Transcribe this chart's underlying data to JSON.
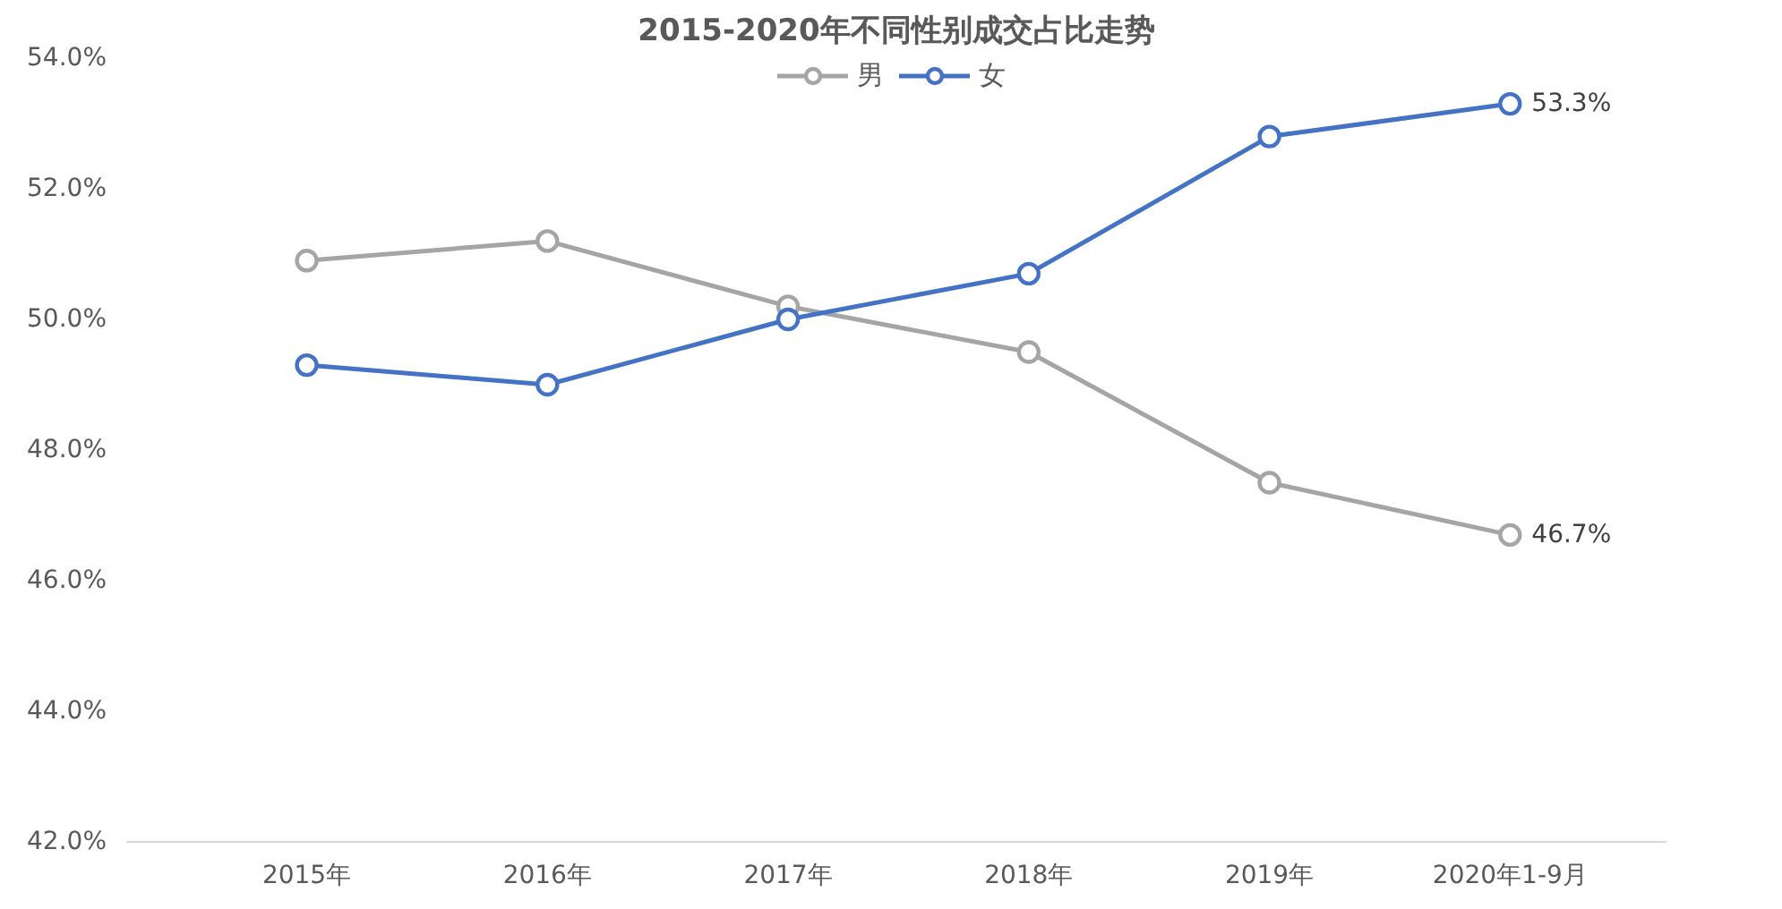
{
  "chart_data": {
    "type": "line",
    "title": "2015-2020年不同性别成交占比走势",
    "categories": [
      "2015年",
      "2016年",
      "2017年",
      "2018年",
      "2019年",
      "2020年1-9月"
    ],
    "series": [
      {
        "name": "男",
        "color": "#a5a5a5",
        "values": [
          50.9,
          51.2,
          50.2,
          49.5,
          47.5,
          46.7
        ],
        "value_labels": [
          null,
          null,
          null,
          null,
          null,
          "46.7%"
        ]
      },
      {
        "name": "女",
        "color": "#4472c4",
        "values": [
          49.3,
          49.0,
          50.0,
          50.7,
          52.8,
          53.3
        ],
        "value_labels": [
          null,
          null,
          null,
          null,
          null,
          "53.3%"
        ]
      }
    ],
    "ylim": [
      42,
      54
    ],
    "yticks": [
      {
        "value": 42,
        "label": "42.0%"
      },
      {
        "value": 44,
        "label": "44.0%"
      },
      {
        "value": 46,
        "label": "46.0%"
      },
      {
        "value": 48,
        "label": "48.0%"
      },
      {
        "value": 50,
        "label": "50.0%"
      },
      {
        "value": 52,
        "label": "52.0%"
      },
      {
        "value": 54,
        "label": "54.0%"
      }
    ],
    "grid": false,
    "legend": "top",
    "marker": "circle",
    "line_style": "solid"
  }
}
